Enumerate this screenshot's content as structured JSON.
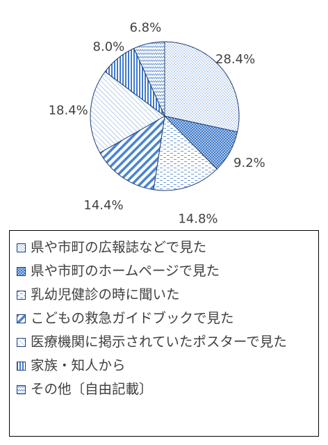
{
  "chart_data": {
    "type": "pie",
    "title": "",
    "start_angle_deg": 0,
    "direction": "clockwise",
    "legend_placement": "bottom",
    "slices": [
      {
        "label": "県や市町の広報誌などで見た",
        "value": 28.4,
        "value_label": "28.4%",
        "pattern": "dots",
        "color": "#5b8fd4"
      },
      {
        "label": "県や市町のホームページで見た",
        "value": 9.2,
        "value_label": "9.2%",
        "pattern": "dense-grid",
        "color": "#3a78c9"
      },
      {
        "label": "乳幼児健診の時に聞いた",
        "value": 14.8,
        "value_label": "14.8%",
        "pattern": "dashes",
        "color": "#5b8fd4"
      },
      {
        "label": "こどもの救急ガイドブックで見た",
        "value": 14.4,
        "value_label": "14.4%",
        "pattern": "wide-diagonal",
        "color": "#3a78c9"
      },
      {
        "label": "医療機関に掲示されていたポスターで見た",
        "value": 18.4,
        "value_label": "18.4%",
        "pattern": "light-diagonal",
        "color": "#5b8fd4"
      },
      {
        "label": "家族・知人から",
        "value": 8.0,
        "value_label": "8.0%",
        "pattern": "vertical",
        "color": "#3a78c9"
      },
      {
        "label": "その他〔自由記載〕",
        "value": 6.8,
        "value_label": "6.8%",
        "pattern": "zigzag",
        "color": "#5b8fd4"
      }
    ]
  }
}
